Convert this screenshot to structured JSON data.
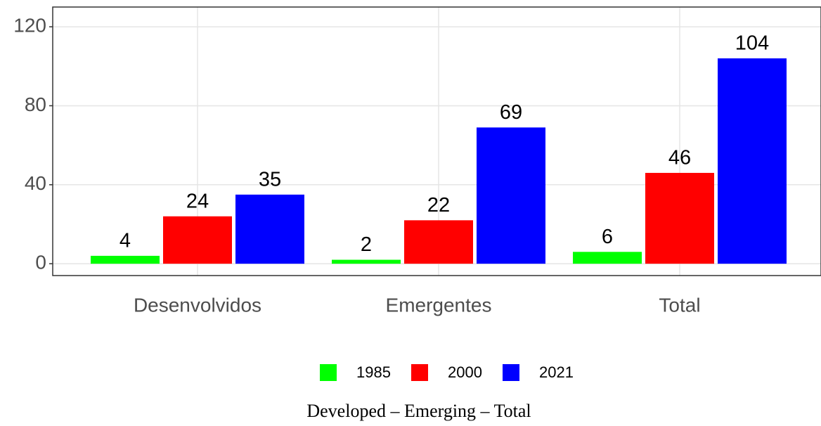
{
  "chart_data": {
    "type": "bar",
    "categories": [
      "Desenvolvidos",
      "Emergentes",
      "Total"
    ],
    "series": [
      {
        "name": "1985",
        "color": "#00ff00",
        "values": [
          4,
          2,
          6
        ]
      },
      {
        "name": "2000",
        "color": "#ff0000",
        "values": [
          24,
          22,
          46
        ]
      },
      {
        "name": "2021",
        "color": "#0000ff",
        "values": [
          35,
          69,
          104
        ]
      }
    ],
    "ylim": [
      -6,
      130
    ],
    "yticks": [
      0,
      40,
      80,
      120
    ],
    "grid": true,
    "legend": "bottom",
    "caption": "Developed – Emerging – Total"
  }
}
